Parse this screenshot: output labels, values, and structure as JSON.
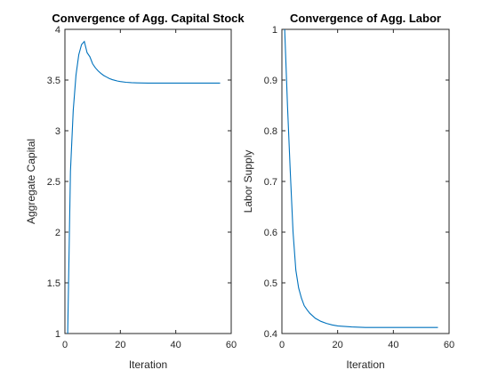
{
  "colors": {
    "series": "#0072BD",
    "axis": "#262626",
    "background": "#ffffff"
  },
  "chart_data": [
    {
      "type": "line",
      "title": "Convergence of Agg. Capital Stock",
      "xlabel": "Iteration",
      "ylabel": "Aggregate Capital",
      "xlim": [
        0,
        60
      ],
      "ylim": [
        1,
        4
      ],
      "xticks": [
        0,
        20,
        40,
        60
      ],
      "xtick_labels": [
        "0",
        "20",
        "40",
        "60"
      ],
      "yticks": [
        1,
        1.5,
        2,
        2.5,
        3,
        3.5,
        4
      ],
      "ytick_labels": [
        "1",
        "1.5",
        "2",
        "2.5",
        "3",
        "3.5",
        "4"
      ],
      "grid": false,
      "series": [
        {
          "x": [
            1,
            2,
            3,
            4,
            5,
            6,
            7,
            8,
            9,
            10,
            11,
            12,
            13,
            14,
            15,
            16,
            17,
            18,
            19,
            20,
            22,
            24,
            26,
            28,
            30,
            35,
            40,
            45,
            50,
            56
          ],
          "y": [
            1.0,
            2.6,
            3.2,
            3.55,
            3.75,
            3.85,
            3.88,
            3.77,
            3.73,
            3.66,
            3.62,
            3.59,
            3.565,
            3.545,
            3.53,
            3.515,
            3.505,
            3.497,
            3.49,
            3.485,
            3.478,
            3.474,
            3.472,
            3.471,
            3.47,
            3.47,
            3.47,
            3.47,
            3.47,
            3.47
          ]
        }
      ]
    },
    {
      "type": "line",
      "title": "Convergence of Agg. Labor",
      "xlabel": "Iteration",
      "ylabel": "Labor Supply",
      "xlim": [
        0,
        60
      ],
      "ylim": [
        0.4,
        1
      ],
      "xticks": [
        0,
        20,
        40,
        60
      ],
      "xtick_labels": [
        "0",
        "20",
        "40",
        "60"
      ],
      "yticks": [
        0.4,
        0.5,
        0.6,
        0.7,
        0.8,
        0.9,
        1
      ],
      "ytick_labels": [
        "0.4",
        "0.5",
        "0.6",
        "0.7",
        "0.8",
        "0.9",
        "1"
      ],
      "grid": false,
      "series": [
        {
          "x": [
            1,
            2,
            3,
            4,
            5,
            6,
            7,
            8,
            9,
            10,
            12,
            14,
            16,
            18,
            20,
            25,
            30,
            35,
            40,
            45,
            50,
            56
          ],
          "y": [
            1.0,
            0.85,
            0.72,
            0.6,
            0.525,
            0.49,
            0.47,
            0.455,
            0.447,
            0.44,
            0.43,
            0.424,
            0.42,
            0.417,
            0.415,
            0.413,
            0.412,
            0.412,
            0.412,
            0.412,
            0.412,
            0.412
          ]
        }
      ]
    }
  ]
}
